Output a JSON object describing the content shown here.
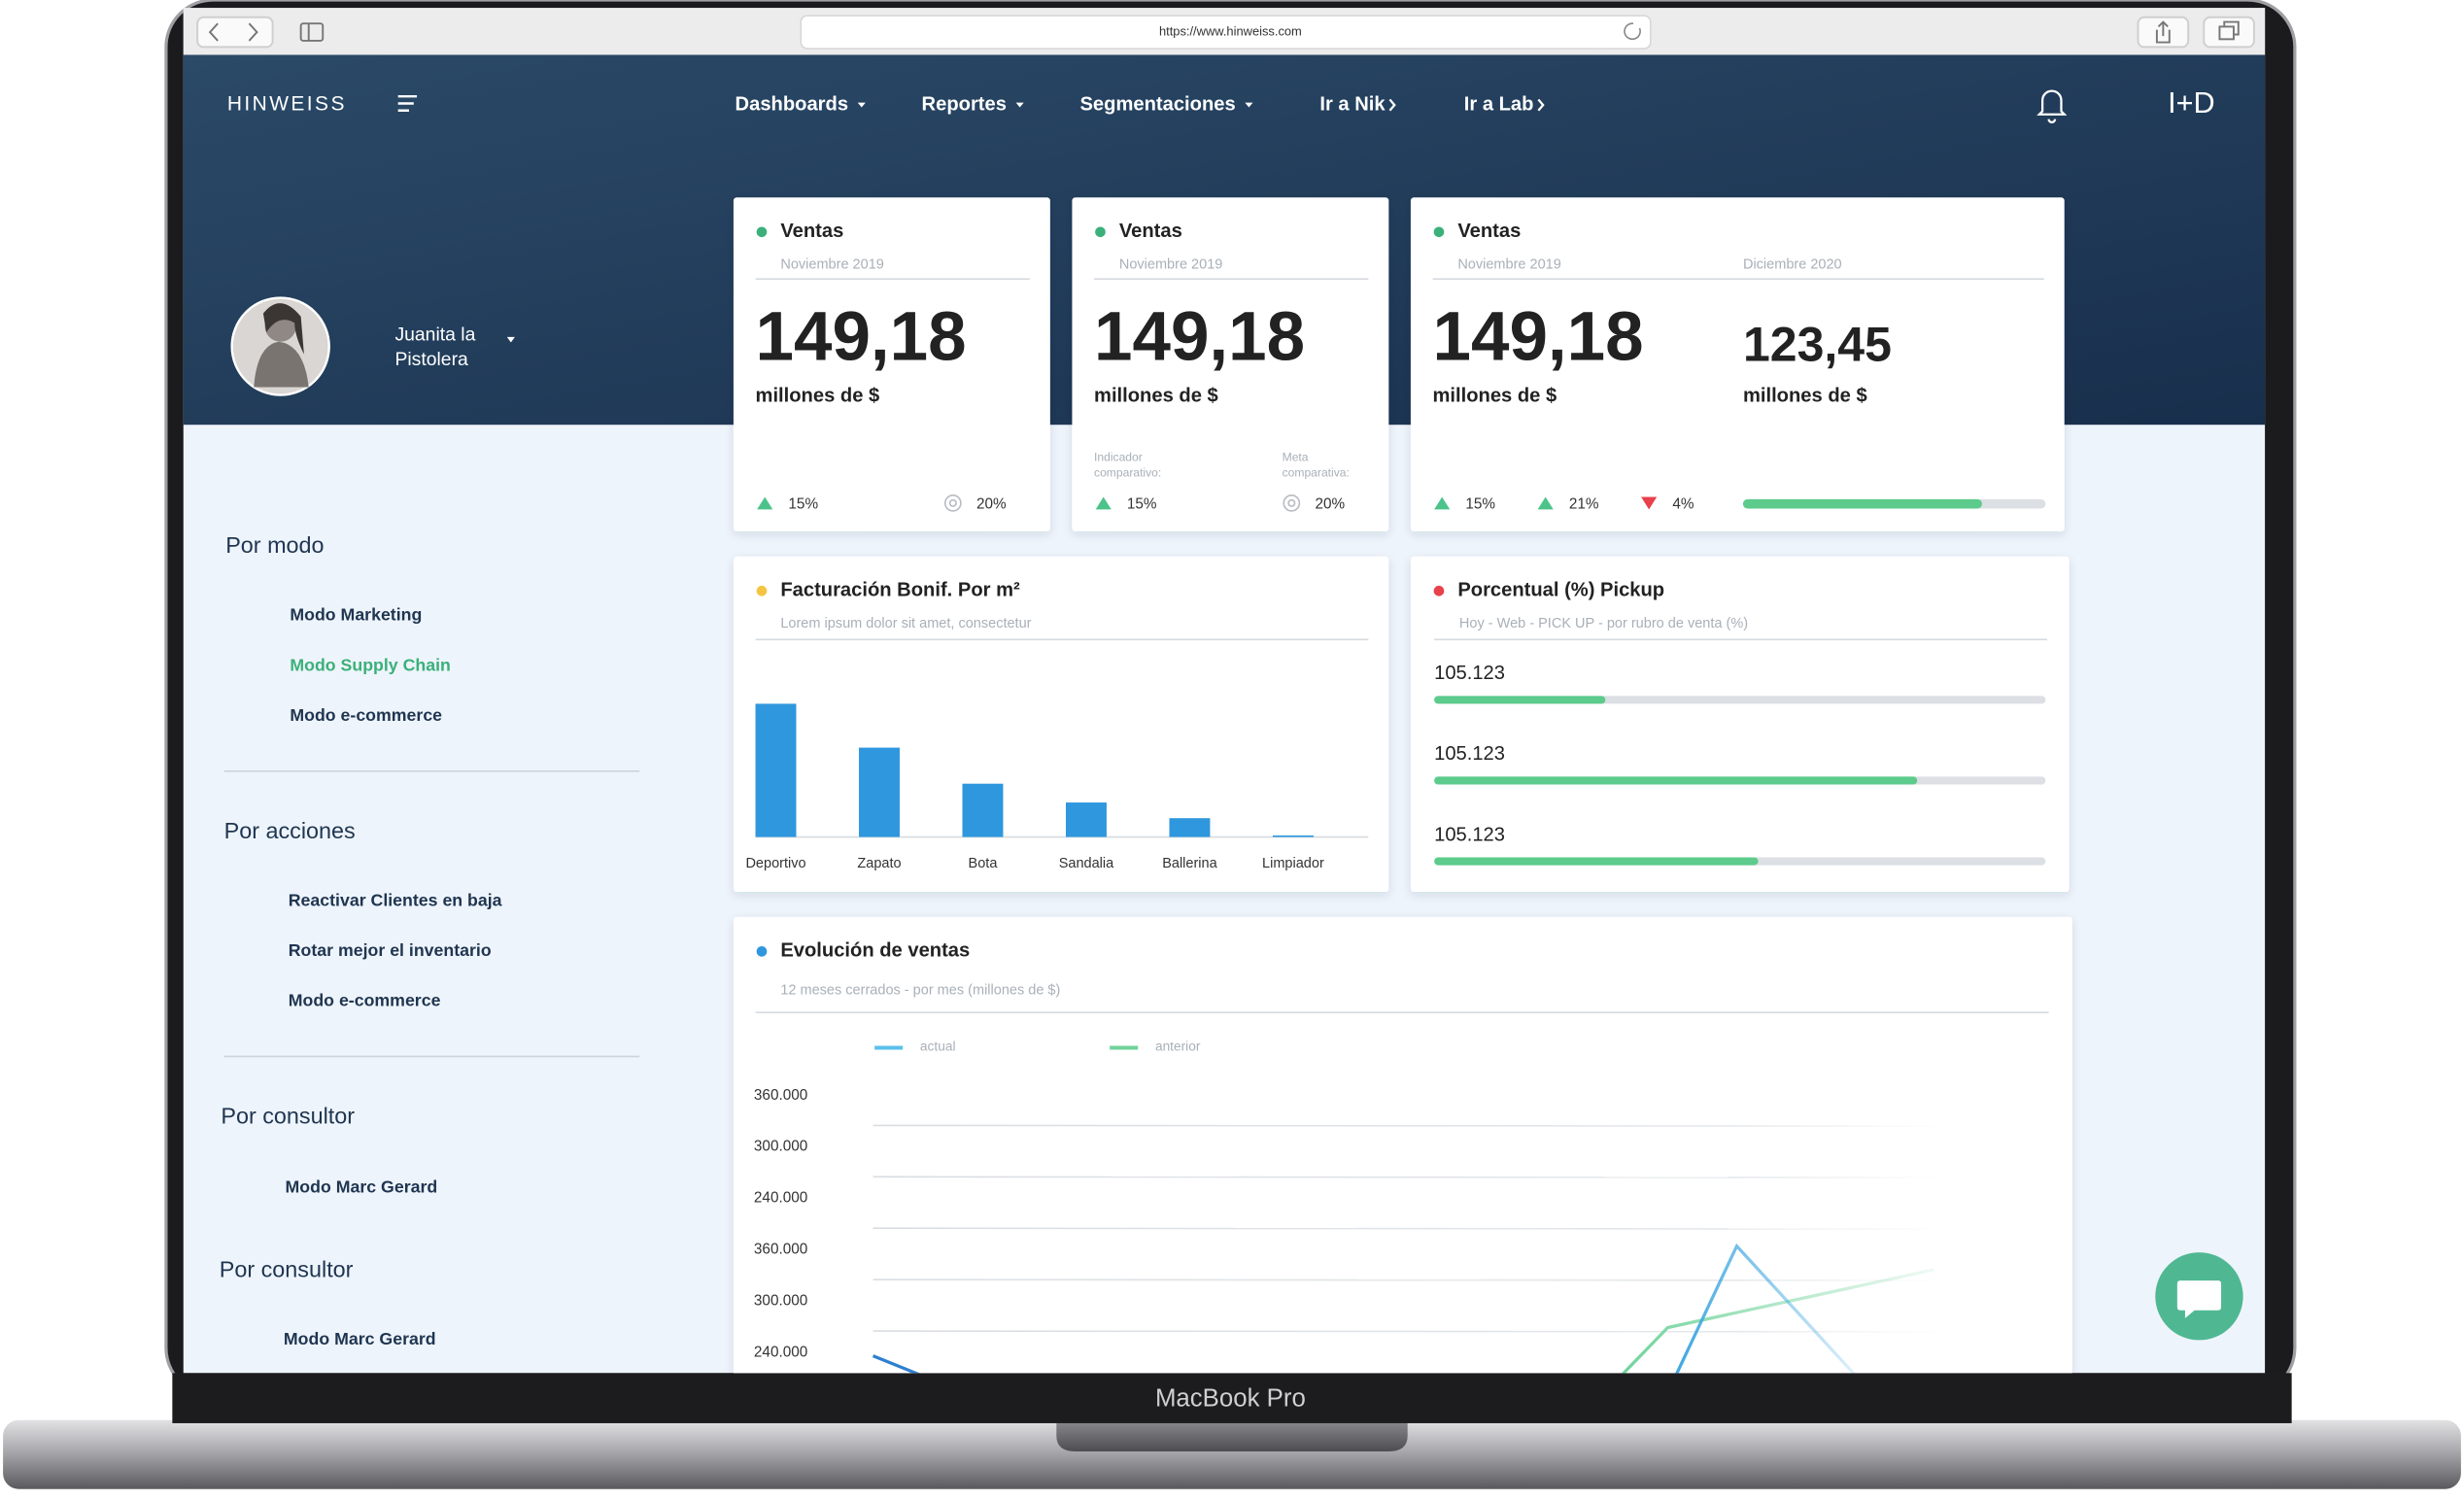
{
  "browser": {
    "url": "https://www.hinweiss.com"
  },
  "header": {
    "logo": "HINWEISS",
    "nav": [
      {
        "label": "Dashboards",
        "icon": "caret"
      },
      {
        "label": "Reportes",
        "icon": "caret"
      },
      {
        "label": "Segmentaciones",
        "icon": "caret"
      },
      {
        "label": "Ir a Nik",
        "icon": "arrow"
      },
      {
        "label": "Ir a Lab",
        "icon": "arrow"
      }
    ],
    "brand": "I+D"
  },
  "user": {
    "name_lines": [
      "Juanita la",
      "Pistolera"
    ]
  },
  "sidebar": {
    "active_color": "#3bb07a",
    "sections": [
      {
        "title": "Por modo",
        "items": [
          "Modo Marketing",
          "Modo Supply Chain",
          "Modo e-commerce"
        ],
        "active_item_index": 1
      },
      {
        "title": "Por acciones",
        "items": [
          "Reactivar Clientes en baja",
          "Rotar mejor el inventario",
          "Modo e-commerce"
        ]
      },
      {
        "title": "Por consultor",
        "items": [
          "Modo Marc Gerard"
        ]
      },
      {
        "title": "Por consultor",
        "items": [
          "Modo Marc Gerard"
        ]
      }
    ]
  },
  "cards": [
    {
      "title": "Ventas",
      "dot": "#3bb07a",
      "dates": [
        "Noviembre 2019"
      ],
      "figures": [
        {
          "value": "149,18",
          "unit": "millones de $"
        }
      ],
      "stats": [
        {
          "trend": "up",
          "value": "15%"
        },
        {
          "trend": "target",
          "value": "20%"
        }
      ]
    },
    {
      "title": "Ventas",
      "dot": "#3bb07a",
      "dates": [
        "Noviembre 2019"
      ],
      "figures": [
        {
          "value": "149,18",
          "unit": "millones de $"
        }
      ],
      "stats": [
        {
          "caption": [
            "Indicador",
            "comparativo:"
          ],
          "trend": "up",
          "value": "15%"
        },
        {
          "caption": [
            "Meta",
            "comparativa:"
          ],
          "trend": "target",
          "value": "20%"
        }
      ]
    },
    {
      "title": "Ventas",
      "dot": "#3bb07a",
      "dates": [
        "Noviembre 2019",
        "Diciembre 2020"
      ],
      "figures": [
        {
          "value": "149,18",
          "unit": "millones de $"
        },
        {
          "value": "123,45",
          "unit": "millones de $"
        }
      ],
      "stats": [
        {
          "trend": "up",
          "value": "15%"
        },
        {
          "trend": "up",
          "value": "21%"
        },
        {
          "trend": "down",
          "value": "4%"
        }
      ],
      "progress": {
        "value": 79,
        "xlim": [
          0,
          100
        ],
        "color": "#5ccb8b"
      }
    }
  ],
  "bar_card": {
    "title": "Facturación Bonif. Por m²",
    "subtitle": "Lorem ipsum dolor sit amet, consectetur",
    "dot": "#f5c542",
    "chart_data": {
      "type": "bar",
      "categories": [
        "Deportivo",
        "Zapato",
        "Bota",
        "Sandalia",
        "Ballerina",
        "Limpiador"
      ],
      "values": [
        85,
        57,
        34,
        22,
        12,
        1
      ],
      "color": "#2f97dd",
      "ylim": [
        0,
        100
      ]
    }
  },
  "pickup_card": {
    "title": "Porcentual (%) Pickup",
    "subtitle": "Hoy - Web - PICK UP - por rubro de venta (%)",
    "dot": "#e8414b",
    "color": "#5ccb8b",
    "xlim": [
      0,
      100
    ],
    "items": [
      {
        "label": "105.123",
        "value": 28
      },
      {
        "label": "105.123",
        "value": 79
      },
      {
        "label": "105.123",
        "value": 53
      }
    ]
  },
  "line_card": {
    "title": "Evolución de ventas",
    "subtitle": "12 meses cerrados - por mes (millones de $)",
    "dot": "#2f97dd",
    "legend": [
      {
        "name": "actual",
        "color": "#5bc0eb"
      },
      {
        "name": "anterior",
        "color": "#6fd39a"
      }
    ],
    "y_labels": [
      "360.000",
      "300.000",
      "240.000",
      "360.000",
      "300.000",
      "240.000"
    ]
  },
  "device": {
    "label": "MacBook Pro"
  }
}
